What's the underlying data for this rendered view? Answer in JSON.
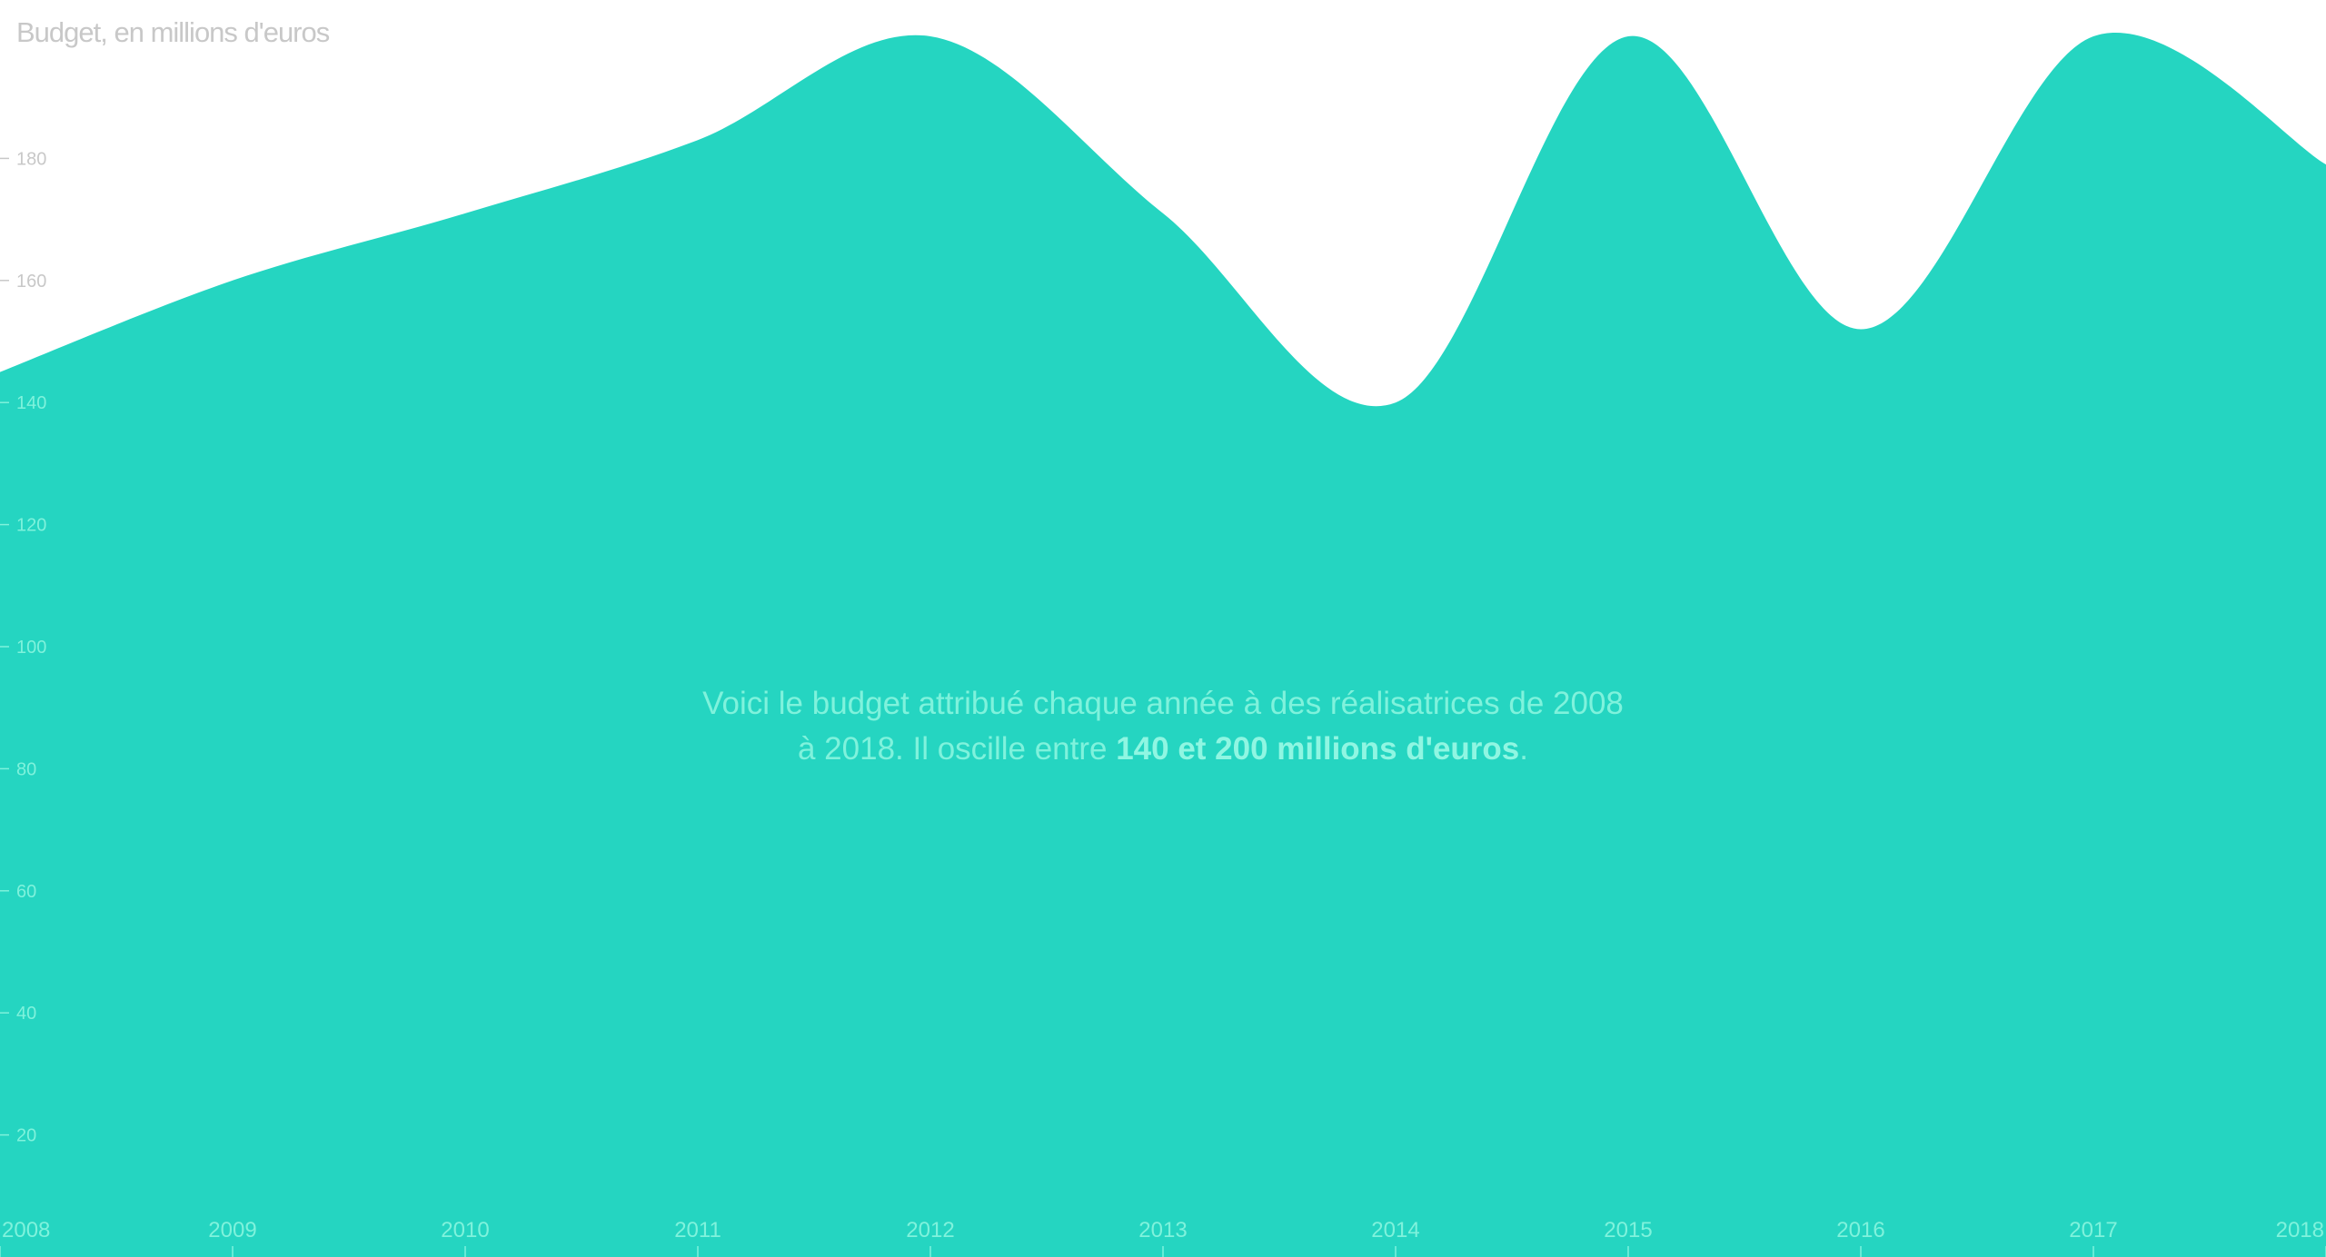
{
  "chart_data": {
    "type": "area",
    "title": "",
    "ylabel": "Budget, en millions d'euros",
    "xlabel": "",
    "x": [
      2008,
      2009,
      2010,
      2011,
      2012,
      2013,
      2014,
      2015,
      2016,
      2017,
      2018
    ],
    "values": [
      145,
      160,
      171,
      183,
      200,
      171,
      140,
      200,
      152,
      200,
      179
    ],
    "ylim": [
      0,
      200
    ],
    "xlim": [
      2008,
      2018
    ],
    "yticks": [
      20,
      40,
      60,
      80,
      100,
      120,
      140,
      160,
      180
    ],
    "xticks": [
      "2008",
      "2009",
      "2010",
      "2011",
      "2012",
      "2013",
      "2014",
      "2015",
      "2016",
      "2017",
      "2018"
    ],
    "grid": false,
    "legend": "none",
    "colors": {
      "area": "#25d5c1",
      "axis_on_white": "#c8c8c8",
      "axis_on_area": "#7ff2dc",
      "annotation_text": "#7ff2dc"
    }
  },
  "annotation": {
    "line1": "Voici le budget attribué chaque année à des réalisatrices de 2008",
    "line2_prefix": "à 2018. Il oscille entre ",
    "line2_bold": "140 et 200 millions d'euros",
    "line2_suffix": "."
  }
}
